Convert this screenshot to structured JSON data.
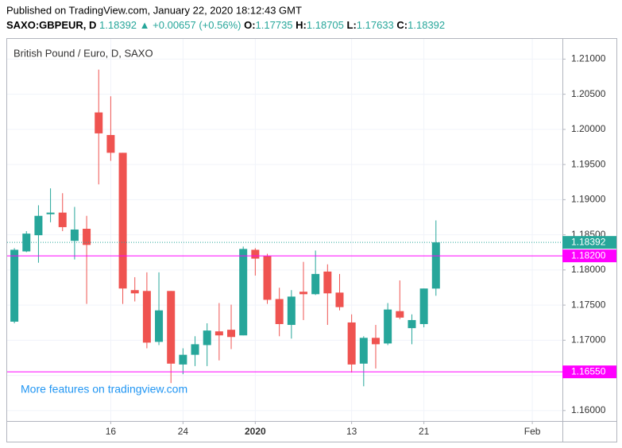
{
  "header": {
    "published": "Published on TradingView.com, January 22, 2020 18:12:43 GMT",
    "symbol": "SAXO:GBPEUR, D",
    "last": "1.18392",
    "arrow": "▲",
    "change": "+0.00657 (+0.56%)",
    "o_label": "O:",
    "o": "1.17735",
    "h_label": "H:",
    "h": "1.18705",
    "l_label": "L:",
    "l": "1.17633",
    "c_label": "C:",
    "c": "1.18392"
  },
  "chart_data": {
    "type": "candlestick",
    "title": "British Pound / Euro, D, SAXO",
    "watermark": "More features on tradingview.com",
    "categories": [
      null,
      null,
      null,
      null,
      null,
      null,
      null,
      null,
      null,
      null,
      null,
      null,
      null,
      null,
      null,
      null,
      null,
      null,
      null,
      null,
      null,
      null,
      null,
      null,
      null,
      null,
      null,
      null,
      null,
      null,
      null,
      null,
      null,
      null,
      null,
      null
    ],
    "open": [
      1.17264,
      1.18264,
      1.18494,
      1.18793,
      1.18816,
      1.18414,
      1.18586,
      1.20241,
      1.1992,
      1.19667,
      1.17713,
      1.17701,
      1.16977,
      1.17701,
      1.16655,
      1.16793,
      1.16931,
      1.17126,
      1.17149,
      1.17069,
      1.18287,
      1.18195,
      1.17586,
      1.17218,
      1.1769,
      1.17655,
      1.17977,
      1.17678,
      1.17253,
      1.16667,
      1.17034,
      1.16954,
      1.17414,
      1.17172,
      1.1723,
      1.17735
    ],
    "high": [
      1.1831,
      1.18552,
      1.1892,
      1.19161,
      1.19092,
      1.18897,
      1.1877,
      1.20851,
      1.20471,
      1.19667,
      1.17897,
      1.17966,
      1.17966,
      1.17701,
      1.16885,
      1.17057,
      1.17241,
      1.17529,
      1.17506,
      1.18333,
      1.1831,
      1.1823,
      1.17747,
      1.17713,
      1.18115,
      1.18276,
      1.1808,
      1.17943,
      1.17368,
      1.17057,
      1.17218,
      1.17529,
      1.17851,
      1.17368,
      1.17736,
      1.18705
    ],
    "low": [
      1.17241,
      1.18253,
      1.18103,
      1.18678,
      1.18552,
      1.18149,
      1.17517,
      1.19218,
      1.19552,
      1.17517,
      1.17552,
      1.16885,
      1.16931,
      1.16391,
      1.16517,
      1.16632,
      1.16632,
      1.16713,
      1.16874,
      1.17069,
      1.1792,
      1.17517,
      1.17057,
      1.17023,
      1.17287,
      1.17644,
      1.17218,
      1.17425,
      1.1654,
      1.16345,
      1.16598,
      1.16931,
      1.17299,
      1.16943,
      1.17184,
      1.17633
    ],
    "close": [
      1.18287,
      1.18517,
      1.1877,
      1.18816,
      1.18609,
      1.18575,
      1.18356,
      1.19943,
      1.19667,
      1.17736,
      1.17667,
      1.16966,
      1.17425,
      1.16667,
      1.16793,
      1.16943,
      1.17138,
      1.17069,
      1.17046,
      1.18299,
      1.18161,
      1.17575,
      1.1723,
      1.17621,
      1.17655,
      1.17943,
      1.17667,
      1.17471,
      1.16655,
      1.17034,
      1.16943,
      1.17437,
      1.17322,
      1.17287,
      1.17736,
      1.18392
    ],
    "up_color": "#26a69a",
    "down_color": "#ef5350",
    "xlim": [
      -0.6,
      45.5
    ],
    "xticks": [
      {
        "value": 8,
        "label": "16"
      },
      {
        "value": 14,
        "label": "24"
      },
      {
        "value": 20,
        "label": "2020"
      },
      {
        "value": 28,
        "label": "13"
      },
      {
        "value": 34,
        "label": "21"
      },
      {
        "value": 43,
        "label": "Feb"
      }
    ],
    "ylim": [
      1.15851,
      1.21287
    ],
    "yticks": [
      {
        "value": 1.16,
        "label": "1.16000"
      },
      {
        "value": 1.165,
        "label": "1.16500"
      },
      {
        "value": 1.17,
        "label": "1.17000"
      },
      {
        "value": 1.175,
        "label": "1.17500"
      },
      {
        "value": 1.18,
        "label": "1.18000"
      },
      {
        "value": 1.185,
        "label": "1.18500"
      },
      {
        "value": 1.19,
        "label": "1.19000"
      },
      {
        "value": 1.195,
        "label": "1.19500"
      },
      {
        "value": 1.2,
        "label": "1.20000"
      },
      {
        "value": 1.205,
        "label": "1.20500"
      },
      {
        "value": 1.21,
        "label": "1.21000"
      }
    ],
    "grid": true,
    "last_price": {
      "value": 1.18392,
      "label": "1.18392",
      "color": "#26a69a"
    },
    "levels": [
      {
        "value": 1.182,
        "label": "1.18200",
        "color": "#ff00ff"
      },
      {
        "value": 1.1655,
        "label": "1.16550",
        "color": "#ff00ff"
      }
    ]
  }
}
